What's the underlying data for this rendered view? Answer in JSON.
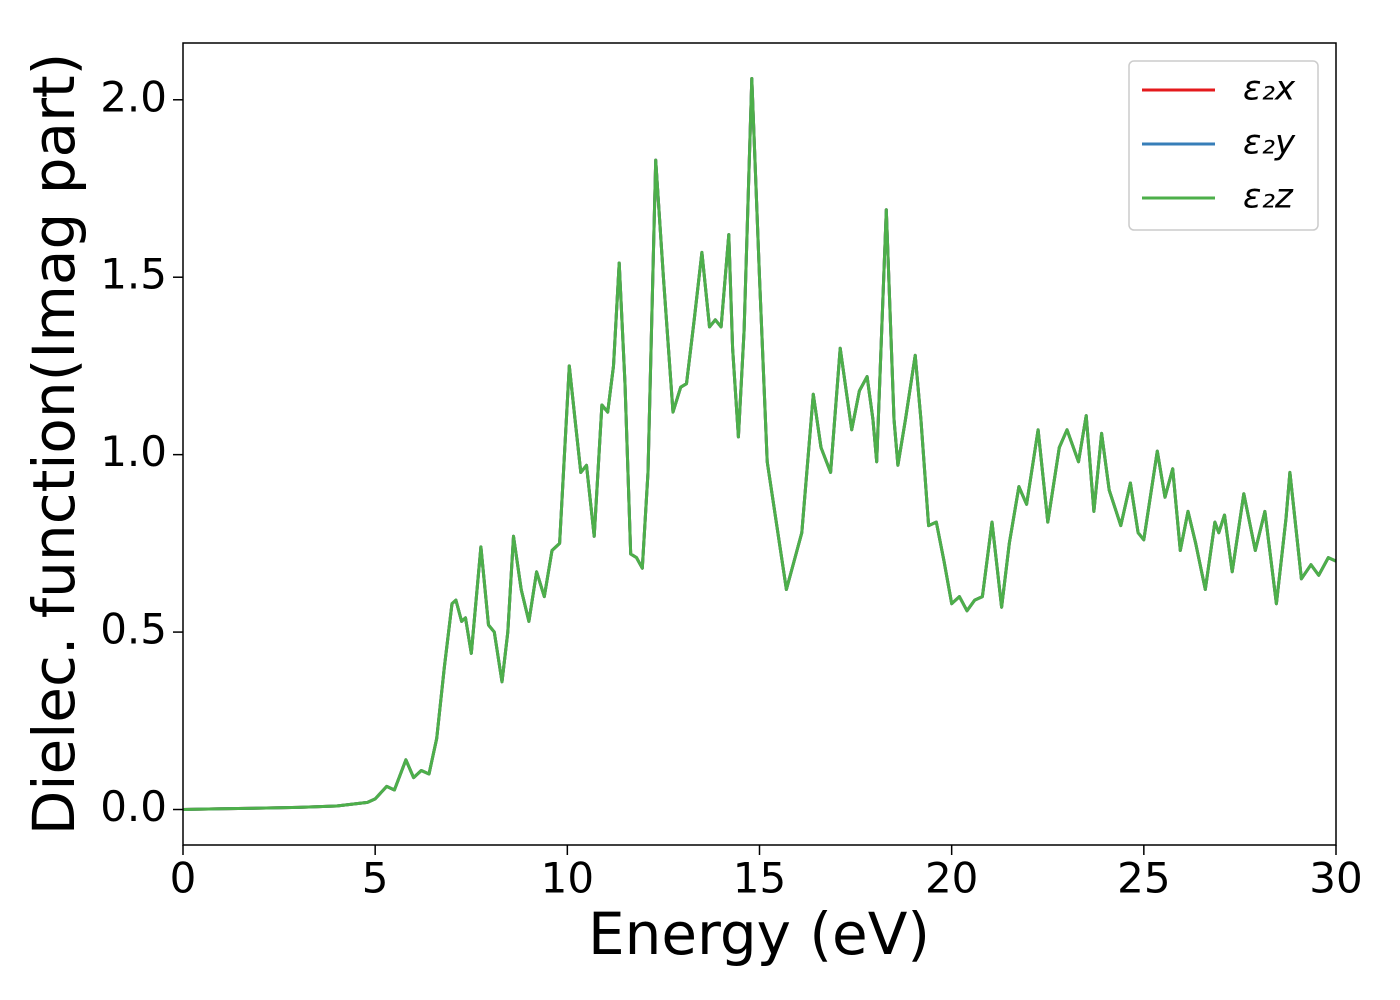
{
  "chart_data": {
    "type": "line",
    "xlabel": "Energy (eV)",
    "ylabel": "Dielec. function(Imag part)",
    "x": [
      0,
      1,
      2,
      3,
      4,
      4.8,
      5.0,
      5.3,
      5.5,
      5.8,
      6.0,
      6.2,
      6.4,
      6.6,
      6.8,
      7.0,
      7.1,
      7.25,
      7.35,
      7.5,
      7.75,
      7.95,
      8.1,
      8.3,
      8.45,
      8.6,
      8.8,
      9.0,
      9.2,
      9.4,
      9.6,
      9.8,
      10.05,
      10.2,
      10.35,
      10.5,
      10.7,
      10.9,
      11.05,
      11.2,
      11.35,
      11.5,
      11.65,
      11.8,
      11.95,
      12.1,
      12.3,
      12.5,
      12.75,
      12.95,
      13.1,
      13.3,
      13.5,
      13.7,
      13.85,
      14.0,
      14.2,
      14.3,
      14.45,
      14.6,
      14.8,
      15.0,
      15.2,
      15.45,
      15.7,
      15.9,
      16.1,
      16.4,
      16.6,
      16.85,
      17.1,
      17.4,
      17.6,
      17.8,
      17.95,
      18.05,
      18.3,
      18.5,
      18.6,
      18.8,
      19.05,
      19.2,
      19.4,
      19.6,
      19.8,
      20.0,
      20.2,
      20.4,
      20.6,
      20.8,
      21.05,
      21.3,
      21.5,
      21.75,
      21.95,
      22.25,
      22.5,
      22.8,
      23.0,
      23.3,
      23.5,
      23.7,
      23.9,
      24.1,
      24.4,
      24.65,
      24.85,
      25.0,
      25.35,
      25.55,
      25.75,
      25.95,
      26.15,
      26.35,
      26.6,
      26.85,
      26.95,
      27.1,
      27.3,
      27.6,
      27.9,
      28.15,
      28.45,
      28.7,
      28.8,
      29.1,
      29.35,
      29.55,
      29.8,
      30.0
    ],
    "series": [
      {
        "name": "ε₂x",
        "color": "#e41a1c",
        "values": [
          0,
          0.002,
          0.004,
          0.006,
          0.01,
          0.02,
          0.03,
          0.065,
          0.055,
          0.14,
          0.09,
          0.11,
          0.1,
          0.2,
          0.4,
          0.58,
          0.59,
          0.53,
          0.54,
          0.44,
          0.74,
          0.52,
          0.5,
          0.36,
          0.5,
          0.77,
          0.62,
          0.53,
          0.67,
          0.6,
          0.73,
          0.75,
          1.25,
          1.1,
          0.95,
          0.97,
          0.77,
          1.14,
          1.12,
          1.25,
          1.54,
          1.2,
          0.72,
          0.71,
          0.68,
          0.95,
          1.83,
          1.5,
          1.12,
          1.19,
          1.2,
          1.38,
          1.57,
          1.36,
          1.38,
          1.36,
          1.62,
          1.3,
          1.05,
          1.35,
          2.06,
          1.5,
          0.98,
          0.8,
          0.62,
          0.7,
          0.78,
          1.17,
          1.02,
          0.95,
          1.3,
          1.07,
          1.18,
          1.22,
          1.1,
          0.98,
          1.69,
          1.1,
          0.97,
          1.1,
          1.28,
          1.1,
          0.8,
          0.81,
          0.7,
          0.58,
          0.6,
          0.56,
          0.59,
          0.6,
          0.81,
          0.57,
          0.75,
          0.91,
          0.86,
          1.07,
          0.81,
          1.02,
          1.07,
          0.98,
          1.11,
          0.84,
          1.06,
          0.9,
          0.8,
          0.92,
          0.78,
          0.76,
          1.01,
          0.88,
          0.96,
          0.73,
          0.84,
          0.75,
          0.62,
          0.81,
          0.78,
          0.83,
          0.67,
          0.89,
          0.73,
          0.84,
          0.58,
          0.82,
          0.95,
          0.65,
          0.69,
          0.66,
          0.71,
          0.7
        ]
      },
      {
        "name": "ε₂y",
        "color": "#377eb8",
        "values": [
          0,
          0.002,
          0.004,
          0.006,
          0.01,
          0.02,
          0.03,
          0.065,
          0.055,
          0.14,
          0.09,
          0.11,
          0.1,
          0.2,
          0.4,
          0.58,
          0.59,
          0.53,
          0.54,
          0.44,
          0.74,
          0.52,
          0.5,
          0.36,
          0.5,
          0.77,
          0.62,
          0.53,
          0.67,
          0.6,
          0.73,
          0.75,
          1.25,
          1.1,
          0.95,
          0.97,
          0.77,
          1.14,
          1.12,
          1.25,
          1.54,
          1.2,
          0.72,
          0.71,
          0.68,
          0.95,
          1.83,
          1.5,
          1.12,
          1.19,
          1.2,
          1.38,
          1.57,
          1.36,
          1.38,
          1.36,
          1.62,
          1.3,
          1.05,
          1.35,
          2.06,
          1.5,
          0.98,
          0.8,
          0.62,
          0.7,
          0.78,
          1.17,
          1.02,
          0.95,
          1.3,
          1.07,
          1.18,
          1.22,
          1.1,
          0.98,
          1.69,
          1.1,
          0.97,
          1.1,
          1.28,
          1.1,
          0.8,
          0.81,
          0.7,
          0.58,
          0.6,
          0.56,
          0.59,
          0.6,
          0.81,
          0.57,
          0.75,
          0.91,
          0.86,
          1.07,
          0.81,
          1.02,
          1.07,
          0.98,
          1.11,
          0.84,
          1.06,
          0.9,
          0.8,
          0.92,
          0.78,
          0.76,
          1.01,
          0.88,
          0.96,
          0.73,
          0.84,
          0.75,
          0.62,
          0.81,
          0.78,
          0.83,
          0.67,
          0.89,
          0.73,
          0.84,
          0.58,
          0.82,
          0.95,
          0.65,
          0.69,
          0.66,
          0.71,
          0.7
        ]
      },
      {
        "name": "ε₂z",
        "color": "#4daf4a",
        "values": [
          0,
          0.002,
          0.004,
          0.006,
          0.01,
          0.02,
          0.03,
          0.065,
          0.055,
          0.14,
          0.09,
          0.11,
          0.1,
          0.2,
          0.4,
          0.58,
          0.59,
          0.53,
          0.54,
          0.44,
          0.74,
          0.52,
          0.5,
          0.36,
          0.5,
          0.77,
          0.62,
          0.53,
          0.67,
          0.6,
          0.73,
          0.75,
          1.25,
          1.1,
          0.95,
          0.97,
          0.77,
          1.14,
          1.12,
          1.25,
          1.54,
          1.2,
          0.72,
          0.71,
          0.68,
          0.95,
          1.83,
          1.5,
          1.12,
          1.19,
          1.2,
          1.38,
          1.57,
          1.36,
          1.38,
          1.36,
          1.62,
          1.3,
          1.05,
          1.35,
          2.06,
          1.5,
          0.98,
          0.8,
          0.62,
          0.7,
          0.78,
          1.17,
          1.02,
          0.95,
          1.3,
          1.07,
          1.18,
          1.22,
          1.1,
          0.98,
          1.69,
          1.1,
          0.97,
          1.1,
          1.28,
          1.1,
          0.8,
          0.81,
          0.7,
          0.58,
          0.6,
          0.56,
          0.59,
          0.6,
          0.81,
          0.57,
          0.75,
          0.91,
          0.86,
          1.07,
          0.81,
          1.02,
          1.07,
          0.98,
          1.11,
          0.84,
          1.06,
          0.9,
          0.8,
          0.92,
          0.78,
          0.76,
          1.01,
          0.88,
          0.96,
          0.73,
          0.84,
          0.75,
          0.62,
          0.81,
          0.78,
          0.83,
          0.67,
          0.89,
          0.73,
          0.84,
          0.58,
          0.82,
          0.95,
          0.65,
          0.69,
          0.66,
          0.71,
          0.7
        ]
      }
    ],
    "xlim": [
      0,
      30
    ],
    "xticks": [
      0,
      5,
      10,
      15,
      20,
      25,
      30
    ],
    "ylim": [
      -0.1,
      2.16
    ],
    "yticks": [
      {
        "value": 0,
        "label": "0.0"
      },
      0.5,
      {
        "value": 1,
        "label": "1.0"
      },
      1.5,
      {
        "value": 2,
        "label": "2.0"
      }
    ],
    "legend": "upper right",
    "grid": false
  }
}
